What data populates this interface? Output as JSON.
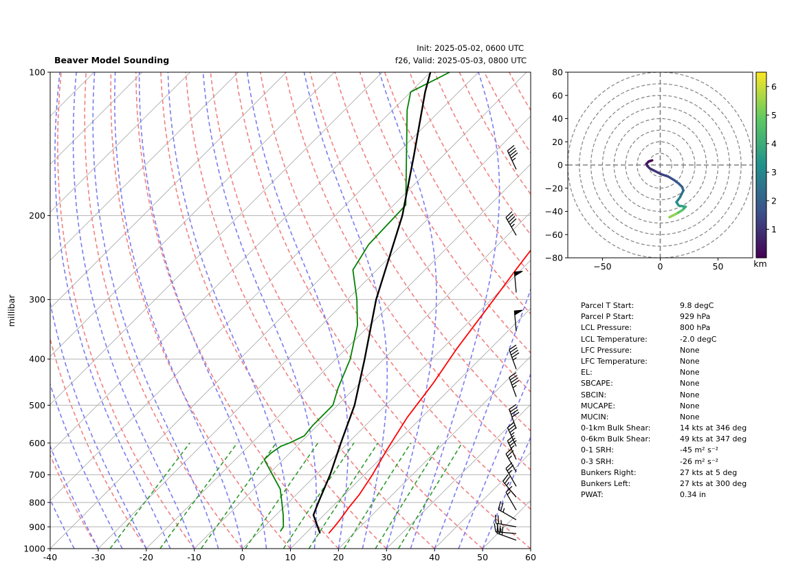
{
  "header": {
    "title": "Beaver Model Sounding",
    "init": "Init: 2025-05-02, 0600 UTC",
    "valid": "f26, Valid: 2025-05-03, 0800 UTC"
  },
  "chart_data": [
    {
      "type": "line",
      "kind": "skew-t log-p",
      "title": "Beaver Model Sounding",
      "ylabel": "millibar",
      "xlabel": "",
      "x_range": [
        -40,
        60
      ],
      "y_range": [
        1000,
        100
      ],
      "y_scale": "log",
      "x_ticks": [
        -40,
        -30,
        -20,
        -10,
        0,
        10,
        20,
        30,
        40,
        50,
        60
      ],
      "y_ticks": [
        100,
        200,
        300,
        400,
        500,
        600,
        700,
        800,
        900,
        1000
      ],
      "grid": true,
      "dry_adiabat_color": "#f08080",
      "moist_adiabat_color": "#7b7bf0",
      "mixing_ratio_color": "#2e9a2e",
      "series": [
        {
          "name": "",
          "color": "#ff0000",
          "points": [
            [
              14.8,
              929
            ],
            [
              14.6,
              900
            ],
            [
              14.3,
              870
            ],
            [
              13.6,
              820
            ],
            [
              13.1,
              770
            ],
            [
              11.7,
              700
            ],
            [
              9.5,
              620
            ],
            [
              7.0,
              530
            ],
            [
              5.3,
              450
            ],
            [
              3.0,
              380
            ],
            [
              0.5,
              300
            ],
            [
              -1.1,
              260
            ],
            [
              -2.8,
              220
            ],
            [
              -2.4,
              180
            ],
            [
              -0.8,
              150
            ],
            [
              0.1,
              130
            ],
            [
              0.6,
              110
            ],
            [
              0.8,
              100
            ]
          ]
        },
        {
          "name": "",
          "color": "#008000",
          "points": [
            [
              4.3,
              920
            ],
            [
              4.0,
              900
            ],
            [
              1.5,
              850
            ],
            [
              -2.0,
              790
            ],
            [
              -4.5,
              750
            ],
            [
              -11.0,
              680
            ],
            [
              -14.0,
              650
            ],
            [
              -13.9,
              630
            ],
            [
              -13.3,
              610
            ],
            [
              -12.2,
              600
            ],
            [
              -10.6,
              580
            ],
            [
              -11.0,
              550
            ],
            [
              -11.0,
              500
            ],
            [
              -13.5,
              460
            ],
            [
              -17.0,
              400
            ],
            [
              -22.5,
              340
            ],
            [
              -28.0,
              300
            ],
            [
              -35.0,
              260
            ],
            [
              -37.0,
              230
            ],
            [
              -37.5,
              190
            ],
            [
              -57.0,
              120
            ],
            [
              -60.0,
              110
            ],
            [
              -56.0,
              100
            ]
          ]
        },
        {
          "name": "",
          "color": "#000000",
          "points": [
            [
              13.0,
              929
            ],
            [
              7.8,
              850
            ],
            [
              6.2,
              800
            ],
            [
              2.9,
              700
            ],
            [
              -1.5,
              600
            ],
            [
              -6.5,
              500
            ],
            [
              -14.0,
              400
            ],
            [
              -24.0,
              300
            ],
            [
              -36.0,
              200
            ],
            [
              -46.0,
              150
            ],
            [
              -57.0,
              110
            ],
            [
              -60.0,
              100
            ]
          ]
        }
      ]
    },
    {
      "type": "line",
      "kind": "hodograph",
      "x_range": [
        -80,
        80
      ],
      "y_range": [
        -80,
        80
      ],
      "x_ticks": [
        -50,
        0,
        50
      ],
      "y_ticks": [
        -80,
        -60,
        -40,
        -20,
        0,
        20,
        40,
        60,
        80
      ],
      "rings": [
        10,
        20,
        30,
        40,
        50,
        60,
        70,
        80
      ],
      "colorbar_label": "km",
      "colorbar_ticks": [
        1,
        2,
        3,
        4,
        5,
        6
      ],
      "colorbar_range": [
        0,
        6.5
      ],
      "points": [
        [
          -7,
          4
        ],
        [
          -10,
          3
        ],
        [
          -12,
          1
        ],
        [
          -11,
          -1
        ],
        [
          -9,
          -3
        ],
        [
          -5,
          -5
        ],
        [
          1,
          -8
        ],
        [
          7,
          -10
        ],
        [
          12,
          -13
        ],
        [
          16,
          -16
        ],
        [
          19,
          -19
        ],
        [
          20,
          -22
        ],
        [
          17,
          -28
        ],
        [
          14,
          -32
        ],
        [
          16,
          -35
        ],
        [
          22,
          -36
        ],
        [
          19,
          -39
        ],
        [
          14,
          -42
        ],
        [
          8,
          -45
        ]
      ],
      "heights": [
        0.0,
        0.3,
        0.5,
        0.7,
        0.9,
        1.1,
        1.3,
        1.5,
        1.7,
        1.9,
        2.1,
        2.4,
        2.8,
        3.2,
        3.6,
        4.0,
        4.7,
        5.4,
        6.0
      ]
    }
  ],
  "parameters": [
    {
      "label": "Parcel T Start:",
      "value": "9.8 degC"
    },
    {
      "label": "Parcel P Start:",
      "value": "929 hPa"
    },
    {
      "label": "LCL Pressure:",
      "value": "800 hPa"
    },
    {
      "label": "LCL Temperature:",
      "value": "-2.0 degC"
    },
    {
      "label": "LFC Pressure:",
      "value": "None"
    },
    {
      "label": "LFC Temperature:",
      "value": "None"
    },
    {
      "label": "EL:",
      "value": "None"
    },
    {
      "label": "SBCAPE:",
      "value": "None"
    },
    {
      "label": "SBCIN:",
      "value": "None"
    },
    {
      "label": "MUCAPE:",
      "value": "None"
    },
    {
      "label": "MUCIN:",
      "value": "None"
    },
    {
      "label": "0-1km Bulk Shear:",
      "value": "14 kts at 346 deg"
    },
    {
      "label": "0-6km Bulk Shear:",
      "value": "49 kts at 347 deg"
    },
    {
      "label": "0-1 SRH:",
      "value": "-45 m² s⁻²"
    },
    {
      "label": "0-3 SRH:",
      "value": "-26 m² s⁻²"
    },
    {
      "label": "Bunkers Right:",
      "value": "27 kts at 5 deg"
    },
    {
      "label": "Bunkers Left:",
      "value": "27 kts at 300 deg"
    },
    {
      "label": "PWAT:",
      "value": "0.34 in"
    }
  ],
  "wind_barbs": [
    {
      "p": 960,
      "dir": 290,
      "kts": 30
    },
    {
      "p": 930,
      "dir": 275,
      "kts": 25
    },
    {
      "p": 900,
      "dir": 280,
      "kts": 25
    },
    {
      "p": 870,
      "dir": 300,
      "kts": 25
    },
    {
      "p": 830,
      "dir": 330,
      "kts": 15
    },
    {
      "p": 780,
      "dir": 320,
      "kts": 25
    },
    {
      "p": 740,
      "dir": 330,
      "kts": 25
    },
    {
      "p": 690,
      "dir": 330,
      "kts": 25
    },
    {
      "p": 650,
      "dir": 335,
      "kts": 35
    },
    {
      "p": 610,
      "dir": 335,
      "kts": 35
    },
    {
      "p": 560,
      "dir": 340,
      "kts": 40
    },
    {
      "p": 480,
      "dir": 340,
      "kts": 45
    },
    {
      "p": 420,
      "dir": 340,
      "kts": 45
    },
    {
      "p": 350,
      "dir": 355,
      "kts": 50
    },
    {
      "p": 290,
      "dir": 355,
      "kts": 50
    },
    {
      "p": 220,
      "dir": 330,
      "kts": 45
    },
    {
      "p": 160,
      "dir": 335,
      "kts": 45
    }
  ]
}
